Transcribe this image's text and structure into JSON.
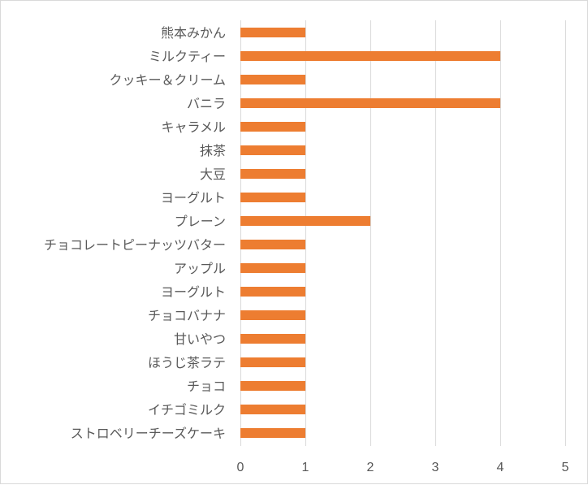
{
  "chart_data": {
    "type": "bar",
    "orientation": "horizontal",
    "title": "",
    "xlabel": "",
    "ylabel": "",
    "categories": [
      "熊本みかん",
      "ミルクティー",
      "クッキー＆クリーム",
      "バニラ",
      "キャラメル",
      "抹茶",
      "大豆",
      "ヨーグルト",
      "プレーン",
      "チョコレートピーナッツバター",
      "アップル",
      "ヨーグルト",
      "チョコバナナ",
      "甘いやつ",
      "ほうじ茶ラテ",
      "チョコ",
      "イチゴミルク",
      "ストロベリーチーズケーキ"
    ],
    "values": [
      1,
      4,
      1,
      4,
      1,
      1,
      1,
      1,
      2,
      1,
      1,
      1,
      1,
      1,
      1,
      1,
      1,
      1
    ],
    "xlim": [
      0,
      5
    ],
    "xticks": [
      "0",
      "1",
      "2",
      "3",
      "4",
      "5"
    ],
    "grid": true,
    "legend": "none",
    "bar_color": "#ED7D31",
    "grid_color": "#D9D9D9",
    "text_color": "#595959"
  }
}
